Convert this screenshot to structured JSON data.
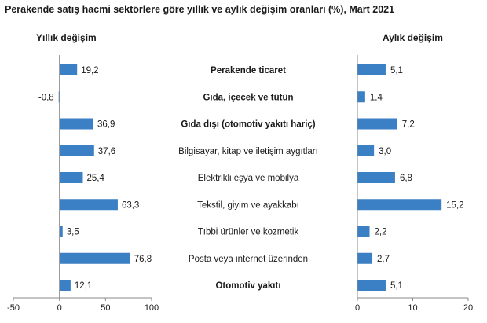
{
  "chart_data": [
    {
      "type": "bar",
      "orientation": "horizontal",
      "title": "Perakende satış hacmi sektörlere göre yıllık ve aylık değişim oranları (%), Mart 2021",
      "panel_title": "Yıllık değişim",
      "categories": [
        "Perakende ticaret",
        "Gıda, içecek ve tütün",
        "Gıda dışı (otomotiv yakıtı hariç)",
        "Bilgisayar, kitap ve iletişim aygıtları",
        "Elektrikli eşya ve mobilya",
        "Tekstil, giyim ve ayakkabı",
        "Tıbbi ürünler ve kozmetik",
        "Posta veya internet üzerinden",
        "Otomotiv yakıtı"
      ],
      "bold_categories": [
        true,
        true,
        true,
        false,
        false,
        false,
        false,
        false,
        true
      ],
      "values": [
        19.2,
        -0.8,
        36.9,
        37.6,
        25.4,
        63.3,
        3.5,
        76.8,
        12.1
      ],
      "value_labels": [
        "19,2",
        "-0,8",
        "36,9",
        "37,6",
        "25,4",
        "63,3",
        "3,5",
        "76,8",
        "12,1"
      ],
      "xlim": [
        -50,
        100
      ],
      "xticks": [
        -50,
        0,
        50,
        100
      ],
      "xtick_labels": [
        "-50",
        "0",
        "50",
        "100"
      ],
      "grid": false,
      "bar_color": "#3b7fc4"
    },
    {
      "type": "bar",
      "orientation": "horizontal",
      "panel_title": "Aylık değişim",
      "values": [
        5.1,
        1.4,
        7.2,
        3.0,
        6.8,
        15.2,
        2.2,
        2.7,
        5.1
      ],
      "value_labels": [
        "5,1",
        "1,4",
        "7,2",
        "3,0",
        "6,8",
        "15,2",
        "2,2",
        "2,7",
        "5,1"
      ],
      "xlim": [
        0,
        20
      ],
      "xticks": [
        0,
        10,
        20
      ],
      "xtick_labels": [
        "0",
        "10",
        "20"
      ],
      "grid": false,
      "bar_color": "#3b7fc4"
    }
  ],
  "colors": {
    "bar": "#3b7fc4",
    "axis": "#8a8a8a",
    "text": "#1a1a1a"
  }
}
